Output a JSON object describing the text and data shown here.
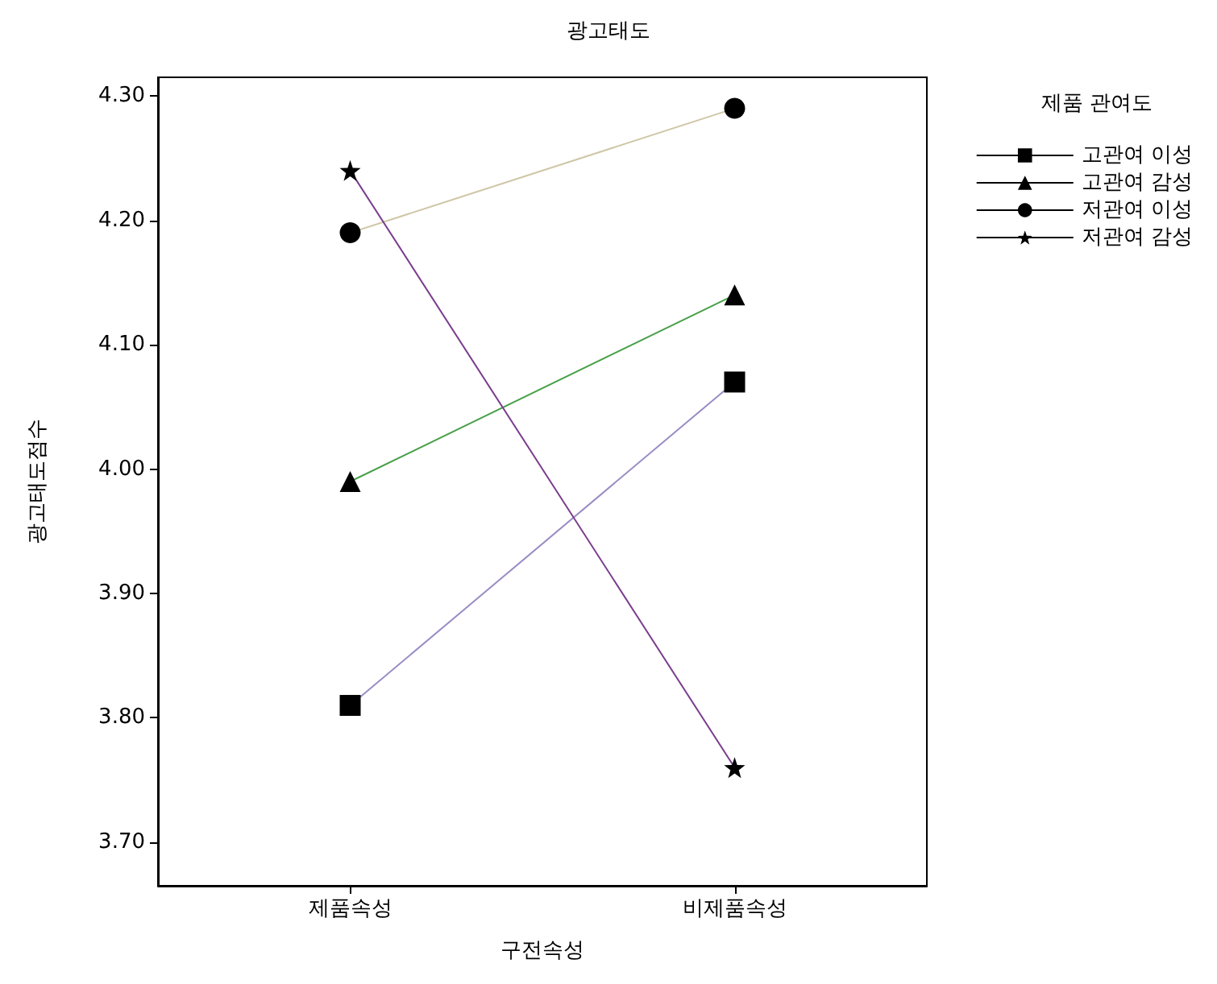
{
  "chart_data": {
    "type": "line",
    "title": "광고태도",
    "xlabel": "구전속성",
    "ylabel": "광고태도점수",
    "legend_title": "제품 관여도",
    "categories": [
      "제품속성",
      "비제품속성"
    ],
    "series": [
      {
        "name": "고관여 이성",
        "color": "#9a8cc4",
        "marker": "square",
        "values": [
          3.81,
          4.07
        ]
      },
      {
        "name": "고관여 감성",
        "color": "#4aa04a",
        "marker": "triangle",
        "values": [
          3.99,
          4.14
        ]
      },
      {
        "name": "저관여 이성",
        "color": "#cfc6a6",
        "marker": "circle",
        "values": [
          4.19,
          4.29
        ]
      },
      {
        "name": "저관여 감성",
        "color": "#7a3c8c",
        "marker": "star",
        "values": [
          4.24,
          3.76
        ]
      }
    ],
    "ylim": [
      3.665,
      4.315
    ],
    "yticks": [
      {
        "value": 3.7,
        "label": "3.70"
      },
      {
        "value": 3.8,
        "label": "3.80"
      },
      {
        "value": 3.9,
        "label": "3.90"
      },
      {
        "value": 4.0,
        "label": "4.00"
      },
      {
        "value": 4.1,
        "label": "4.10"
      },
      {
        "value": 4.2,
        "label": "4.20"
      },
      {
        "value": 4.3,
        "label": "4.30"
      }
    ],
    "grid": false,
    "legend": "right"
  }
}
